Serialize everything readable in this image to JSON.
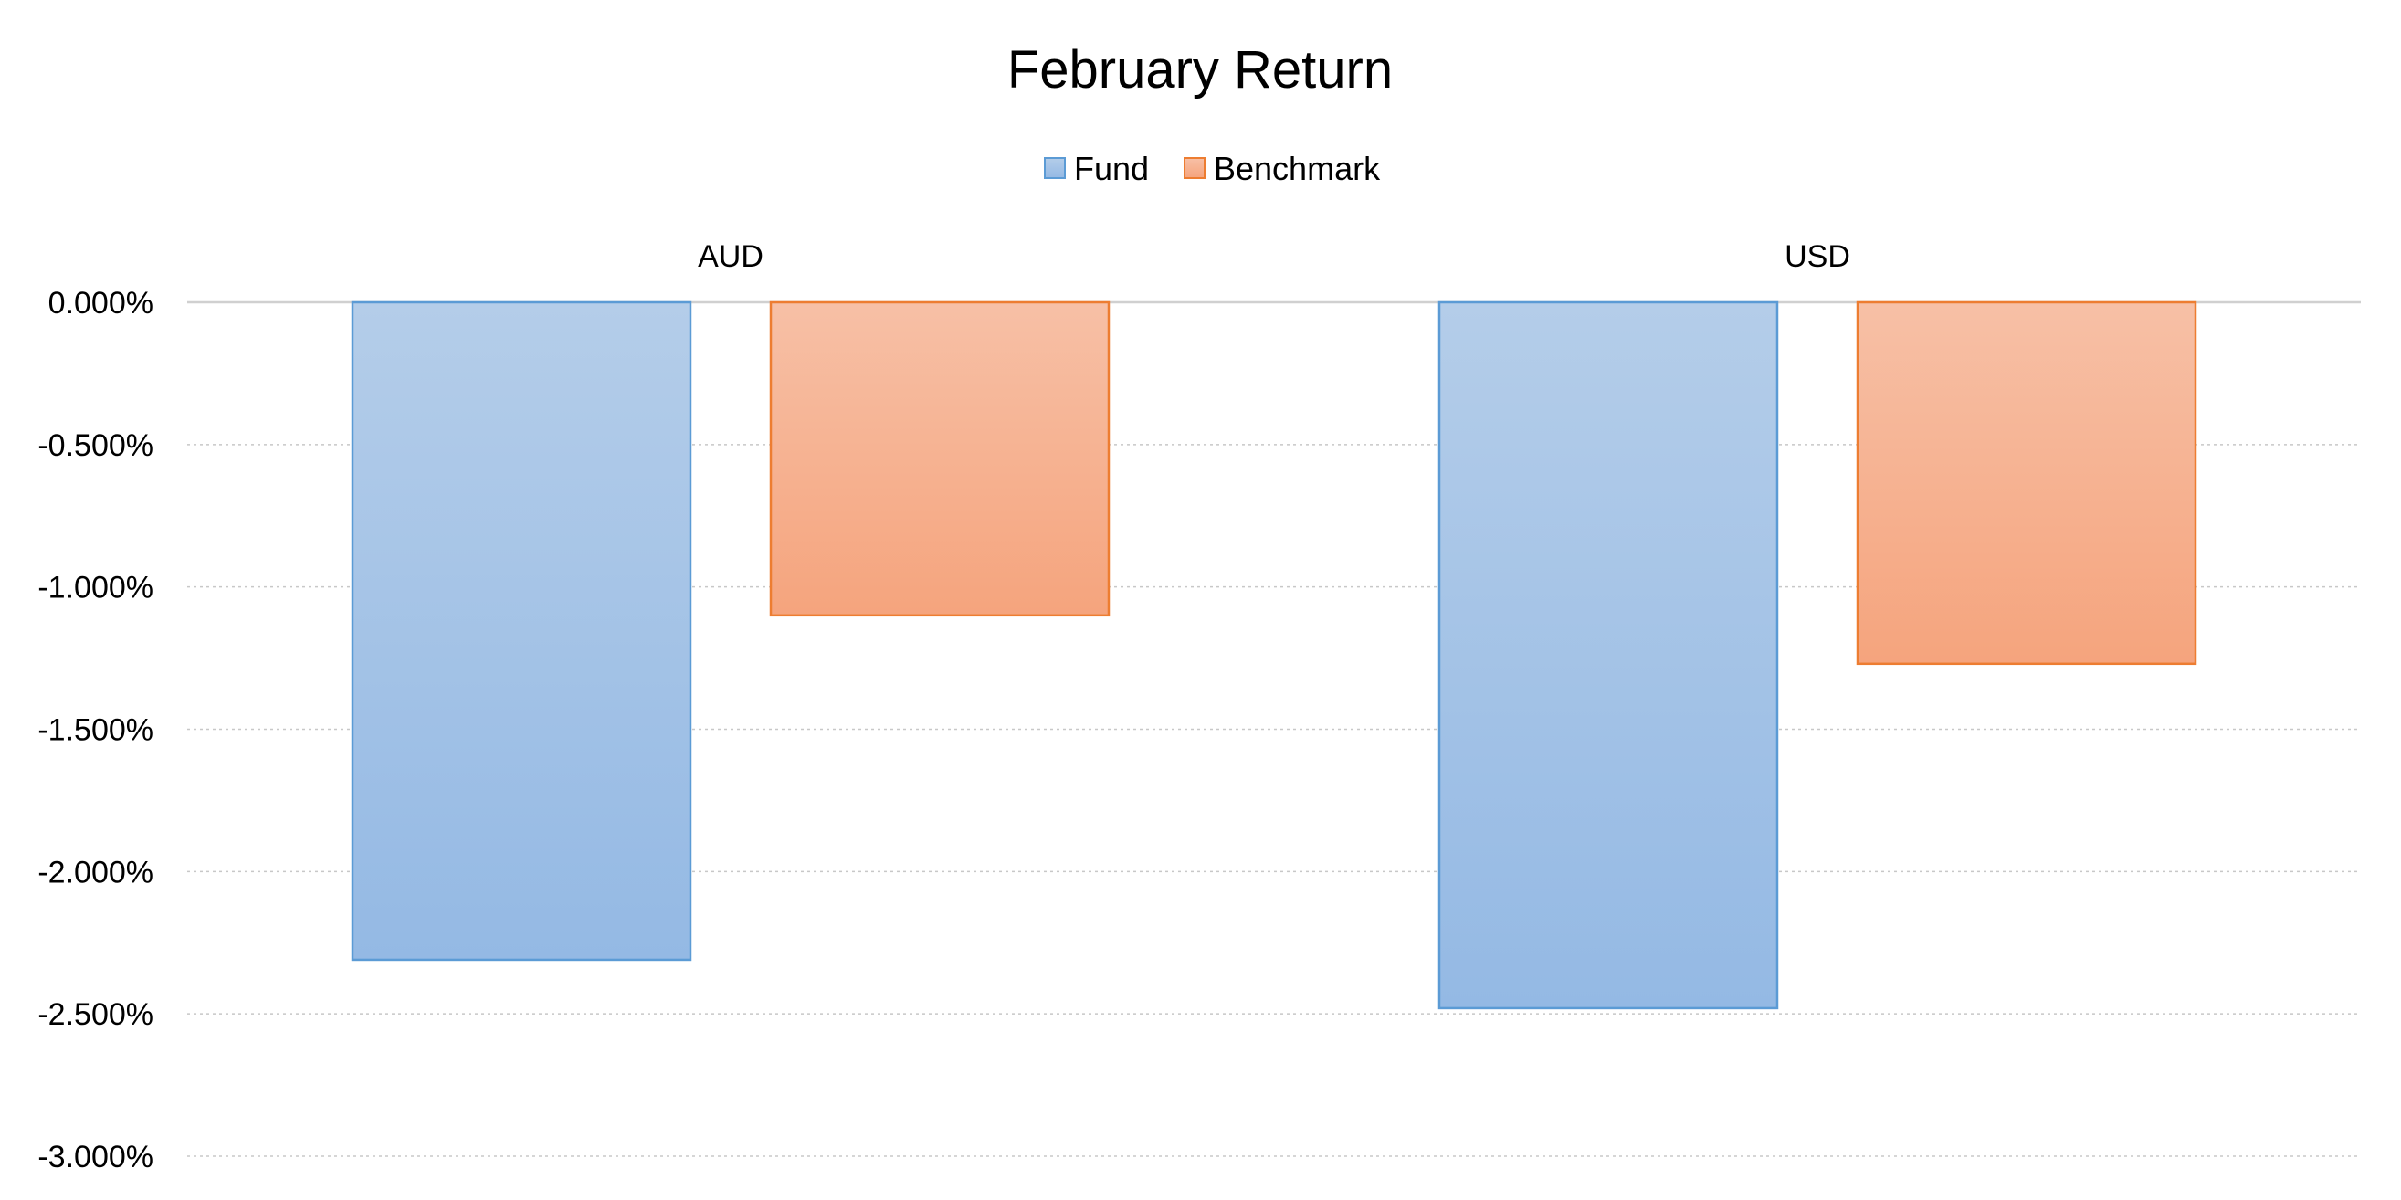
{
  "chart_data": {
    "type": "bar",
    "title": "February Return",
    "categories": [
      "AUD",
      "USD"
    ],
    "series": [
      {
        "name": "Fund",
        "values": [
          -2.31,
          -2.48
        ],
        "color": "#5b9bd5",
        "fill_top": "#b4cde9",
        "fill_bottom": "#94b9e4"
      },
      {
        "name": "Benchmark",
        "values": [
          -1.1,
          -1.27
        ],
        "color": "#ed7d31",
        "fill_top": "#f7c0a6",
        "fill_bottom": "#f5a47d"
      }
    ],
    "ylim": [
      -3.0,
      0.0
    ],
    "yticks": [
      0.0,
      -0.5,
      -1.0,
      -1.5,
      -2.0,
      -2.5,
      -3.0
    ],
    "ytick_labels": [
      "0.000%",
      "-0.500%",
      "-1.000%",
      "-1.500%",
      "-2.000%",
      "-2.500%",
      "-3.000%"
    ],
    "xlabel": "",
    "ylabel": "",
    "grid": true,
    "legend_position": "top-center",
    "category_label_position": "top"
  }
}
